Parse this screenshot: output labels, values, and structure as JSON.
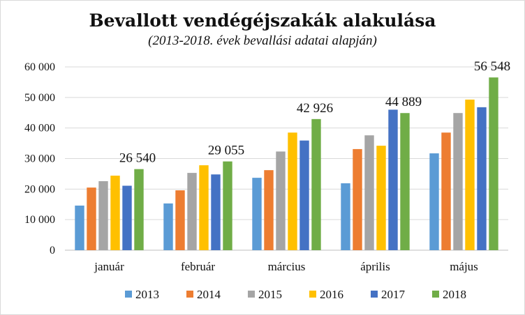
{
  "chart_data": {
    "type": "bar",
    "title": "Bevallott vendégéjszakák alakulása",
    "subtitle": "(2013-2018. évek bevallási adatai alapján)",
    "categories": [
      "január",
      "február",
      "március",
      "április",
      "május"
    ],
    "ylim": [
      0,
      60000
    ],
    "yticks": [
      0,
      10000,
      20000,
      30000,
      40000,
      50000,
      60000
    ],
    "ytick_labels": [
      "0",
      "10 000",
      "20 000",
      "30 000",
      "40 000",
      "50 000",
      "60 000"
    ],
    "grid": true,
    "legend_position": "bottom",
    "series": [
      {
        "name": "2013",
        "color": "#5b9bd5",
        "values": [
          14600,
          15300,
          23700,
          21900,
          31700
        ]
      },
      {
        "name": "2014",
        "color": "#ed7d31",
        "values": [
          20500,
          19600,
          26200,
          33100,
          38500
        ]
      },
      {
        "name": "2015",
        "color": "#a5a5a5",
        "values": [
          22600,
          25300,
          32300,
          37600,
          44900
        ]
      },
      {
        "name": "2016",
        "color": "#ffc000",
        "values": [
          24400,
          27800,
          38500,
          34200,
          49300
        ]
      },
      {
        "name": "2017",
        "color": "#4472c4",
        "values": [
          21100,
          24800,
          35900,
          46000,
          46800
        ]
      },
      {
        "name": "2018",
        "color": "#70ad47",
        "values": [
          26540,
          29055,
          42926,
          44889,
          56548
        ]
      }
    ],
    "data_labels": {
      "series": "2018",
      "labels": [
        "26 540",
        "29 055",
        "42 926",
        "44 889",
        "56 548"
      ]
    }
  }
}
